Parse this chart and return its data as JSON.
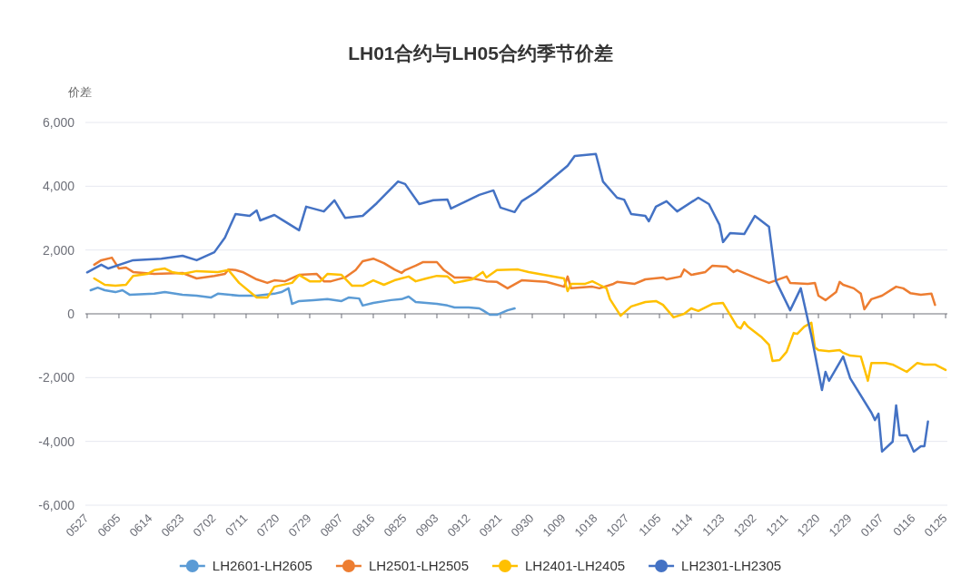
{
  "chart_data": {
    "type": "line",
    "title": "LH01合约与LH05合约季节价差",
    "ylabel": "价差",
    "categories": [
      "0527",
      null,
      null,
      null,
      null,
      null,
      null,
      null,
      null,
      "0605",
      null,
      null,
      null,
      null,
      null,
      null,
      null,
      null,
      "0614",
      null,
      null,
      null,
      null,
      null,
      null,
      null,
      null,
      "0623",
      null,
      null,
      null,
      null,
      null,
      null,
      null,
      null,
      "0702",
      null,
      null,
      null,
      null,
      null,
      null,
      null,
      null,
      "0711",
      null,
      null,
      null,
      null,
      null,
      null,
      null,
      null,
      "0720",
      null,
      null,
      null,
      null,
      null,
      null,
      null,
      null,
      "0729",
      null,
      null,
      null,
      null,
      null,
      null,
      null,
      null,
      "0807",
      null,
      null,
      null,
      null,
      null,
      null,
      null,
      null,
      "0816",
      null,
      null,
      null,
      null,
      null,
      null,
      null,
      null,
      "0825",
      null,
      null,
      null,
      null,
      null,
      null,
      null,
      null,
      "0903",
      null,
      null,
      null,
      null,
      null,
      null,
      null,
      null,
      "0912",
      null,
      null,
      null,
      null,
      null,
      null,
      null,
      null,
      "0921",
      null,
      null,
      null,
      null,
      null,
      null,
      null,
      null,
      "0930",
      null,
      null,
      null,
      null,
      null,
      null,
      null,
      null,
      "1009",
      null,
      null,
      null,
      null,
      null,
      null,
      null,
      null,
      "1018",
      null,
      null,
      null,
      null,
      null,
      null,
      null,
      null,
      "1027",
      null,
      null,
      null,
      null,
      null,
      null,
      null,
      null,
      "1105",
      null,
      null,
      null,
      null,
      null,
      null,
      null,
      null,
      "1114",
      null,
      null,
      null,
      null,
      null,
      null,
      null,
      null,
      "1123",
      null,
      null,
      null,
      null,
      null,
      null,
      null,
      null,
      "1202",
      null,
      null,
      null,
      null,
      null,
      null,
      null,
      null,
      "1211",
      null,
      null,
      null,
      null,
      null,
      null,
      null,
      null,
      "1220",
      null,
      null,
      null,
      null,
      null,
      null,
      null,
      null,
      "1229",
      null,
      null,
      null,
      null,
      null,
      null,
      null,
      null,
      "0107",
      null,
      null,
      null,
      null,
      null,
      null,
      null,
      null,
      "0116",
      null,
      null,
      null,
      null,
      null,
      null,
      null,
      null,
      "0125"
    ],
    "ylim": [
      -6000,
      6000
    ],
    "yticks": [
      {
        "value": -6000,
        "label": "-6,000"
      },
      {
        "value": -4000,
        "label": "-4,000"
      },
      {
        "value": -2000,
        "label": "-2,000"
      },
      0,
      {
        "value": 2000,
        "label": "2,000"
      },
      {
        "value": 4000,
        "label": "4,000"
      },
      {
        "value": 6000,
        "label": "6,000"
      }
    ],
    "grid": "y",
    "legend": "bottom",
    "series": [
      {
        "name": "LH2601-LH2605",
        "color": "#5b9bd5",
        "values": [
          null,
          740,
          null,
          820,
          null,
          740,
          null,
          null,
          680,
          null,
          740,
          null,
          600,
          null,
          null,
          null,
          null,
          null,
          null,
          630,
          null,
          null,
          680,
          null,
          null,
          null,
          null,
          600,
          null,
          null,
          null,
          570,
          null,
          null,
          null,
          510,
          null,
          630,
          null,
          null,
          null,
          null,
          null,
          570,
          null,
          null,
          null,
          null,
          570,
          null,
          null,
          null,
          null,
          630,
          null,
          680,
          null,
          800,
          310,
          null,
          400,
          null,
          null,
          null,
          430,
          null,
          null,
          null,
          460,
          null,
          null,
          null,
          400,
          null,
          510,
          null,
          null,
          480,
          260,
          null,
          null,
          340,
          null,
          null,
          null,
          null,
          430,
          null,
          null,
          460,
          null,
          540,
          null,
          370,
          null,
          null,
          null,
          null,
          null,
          310,
          null,
          null,
          260,
          null,
          200,
          null,
          null,
          null,
          200,
          null,
          null,
          170,
          110,
          null,
          -30,
          null,
          -30,
          null,
          null,
          110,
          null,
          170,
          null,
          null,
          null,
          null,
          null,
          null,
          null,
          null,
          null,
          null,
          null,
          null,
          null,
          null,
          null,
          null,
          null,
          null,
          null,
          null,
          null,
          null,
          null,
          null,
          null,
          null,
          null,
          null,
          null,
          null,
          null,
          null,
          null,
          null,
          null,
          null,
          null,
          null,
          null,
          null,
          null,
          null,
          null,
          null,
          null,
          null,
          null,
          null,
          null,
          null,
          null,
          null,
          null,
          null,
          null,
          null,
          null,
          null,
          null,
          null,
          null,
          null,
          null,
          null,
          null,
          null,
          null,
          null,
          null,
          null,
          null,
          null,
          null,
          null,
          null,
          null,
          null,
          null,
          null,
          null,
          null,
          null,
          null,
          null,
          null,
          null,
          null,
          null,
          null,
          null,
          null,
          null,
          null,
          null,
          null,
          null,
          null,
          null,
          null,
          null,
          null,
          null,
          null,
          null,
          null,
          null,
          null,
          null,
          null,
          null,
          null,
          null,
          null,
          null,
          null,
          null,
          null,
          null,
          null,
          null,
          null,
          null
        ]
      },
      {
        "name": "LH2501-LH2505",
        "color": "#ed7d31",
        "values": [
          null,
          null,
          1540,
          null,
          1680,
          null,
          null,
          1760,
          1590,
          1420,
          null,
          1450,
          null,
          1310,
          null,
          null,
          null,
          null,
          null,
          1250,
          null,
          null,
          null,
          null,
          null,
          null,
          null,
          1280,
          null,
          null,
          null,
          1110,
          null,
          null,
          null,
          null,
          1190,
          null,
          null,
          1250,
          1390,
          null,
          1370,
          null,
          1310,
          null,
          null,
          null,
          1080,
          null,
          null,
          970,
          null,
          1050,
          null,
          null,
          1020,
          null,
          null,
          null,
          1220,
          null,
          null,
          null,
          null,
          1250,
          null,
          1020,
          null,
          1020,
          null,
          null,
          null,
          1140,
          null,
          null,
          1370,
          null,
          1650,
          null,
          null,
          1730,
          null,
          null,
          1590,
          null,
          null,
          1390,
          null,
          1280,
          1370,
          null,
          null,
          1510,
          null,
          1620,
          null,
          null,
          null,
          1620,
          null,
          1370,
          null,
          null,
          1140,
          null,
          null,
          null,
          1140,
          null,
          null,
          null,
          null,
          1020,
          null,
          null,
          1000,
          null,
          null,
          800,
          null,
          null,
          null,
          1050,
          null,
          null,
          null,
          null,
          null,
          null,
          1000,
          null,
          null,
          null,
          null,
          850,
          1170,
          800,
          null,
          null,
          null,
          null,
          null,
          850,
          null,
          800,
          null,
          null,
          null,
          940,
          1000,
          null,
          null,
          null,
          null,
          940,
          null,
          null,
          1080,
          null,
          null,
          null,
          null,
          1140,
          1080,
          null,
          null,
          null,
          1170,
          1390,
          null,
          1220,
          null,
          null,
          null,
          1310,
          null,
          1510,
          null,
          null,
          null,
          1480,
          null,
          1310,
          1370,
          null,
          null,
          null,
          null,
          1140,
          null,
          null,
          null,
          970,
          null,
          null,
          null,
          null,
          1170,
          970,
          null,
          null,
          null,
          null,
          940,
          null,
          970,
          570,
          null,
          430,
          null,
          null,
          680,
          1000,
          910,
          null,
          null,
          800,
          null,
          630,
          140,
          null,
          460,
          null,
          null,
          570,
          null,
          null,
          null,
          850,
          null,
          800,
          null,
          650,
          null,
          null,
          600,
          null,
          null,
          630,
          280,
          null,
          null,
          null
        ]
      },
      {
        "name": "LH2401-LH2405",
        "color": "#ffc000",
        "values": [
          null,
          null,
          1110,
          null,
          null,
          910,
          null,
          null,
          880,
          null,
          null,
          910,
          null,
          1190,
          null,
          null,
          null,
          1250,
          null,
          1370,
          null,
          null,
          1420,
          null,
          1310,
          null,
          null,
          1250,
          null,
          null,
          null,
          1340,
          null,
          null,
          null,
          null,
          null,
          1310,
          null,
          null,
          1370,
          null,
          null,
          970,
          null,
          null,
          null,
          null,
          510,
          null,
          null,
          510,
          null,
          850,
          null,
          null,
          null,
          null,
          970,
          null,
          1220,
          null,
          null,
          1020,
          null,
          null,
          1020,
          null,
          1250,
          null,
          null,
          null,
          1220,
          null,
          null,
          880,
          null,
          null,
          880,
          null,
          null,
          1050,
          null,
          null,
          910,
          null,
          null,
          1050,
          null,
          null,
          null,
          1170,
          null,
          1020,
          null,
          null,
          1110,
          null,
          null,
          1190,
          null,
          null,
          1170,
          null,
          970,
          null,
          null,
          null,
          null,
          1080,
          null,
          null,
          1310,
          1140,
          null,
          null,
          1370,
          null,
          null,
          null,
          null,
          null,
          1390,
          null,
          null,
          1310,
          null,
          null,
          null,
          null,
          null,
          null,
          null,
          null,
          null,
          1110,
          710,
          940,
          null,
          null,
          null,
          940,
          null,
          1020,
          null,
          910,
          null,
          800,
          460,
          null,
          null,
          -60,
          null,
          null,
          230,
          null,
          null,
          null,
          370,
          null,
          null,
          400,
          null,
          280,
          null,
          null,
          -110,
          null,
          null,
          0,
          null,
          170,
          null,
          90,
          null,
          null,
          null,
          310,
          null,
          null,
          340,
          null,
          null,
          null,
          -400,
          -460,
          -260,
          -400,
          null,
          null,
          null,
          -740,
          null,
          -970,
          -1480,
          null,
          -1450,
          null,
          -1190,
          null,
          -600,
          -630,
          null,
          -400,
          null,
          -280,
          -1050,
          -1140,
          null,
          null,
          -1170,
          null,
          null,
          -1140,
          -1220,
          null,
          -1310,
          null,
          null,
          -1340,
          null,
          -2100,
          -1540,
          null,
          null,
          null,
          -1540,
          null,
          -1590,
          null,
          null,
          null,
          -1820,
          null,
          null,
          -1540,
          null,
          -1590,
          null,
          null,
          -1590,
          null,
          null,
          -1760
        ]
      },
      {
        "name": "LH2301-LH2305",
        "color": "#4472c4",
        "values": [
          1300,
          null,
          null,
          null,
          1540,
          null,
          1420,
          null,
          null,
          null,
          null,
          null,
          null,
          1680,
          null,
          null,
          null,
          null,
          null,
          null,
          null,
          1730,
          null,
          null,
          null,
          null,
          null,
          1820,
          null,
          null,
          null,
          1680,
          null,
          null,
          null,
          null,
          1930,
          null,
          null,
          2390,
          null,
          null,
          3130,
          null,
          null,
          null,
          3070,
          null,
          3240,
          2930,
          null,
          null,
          null,
          3100,
          null,
          2960,
          null,
          null,
          null,
          null,
          2620,
          null,
          3360,
          null,
          null,
          null,
          null,
          3210,
          null,
          null,
          3560,
          null,
          null,
          3010,
          null,
          null,
          null,
          null,
          3070,
          null,
          null,
          null,
          3470,
          null,
          null,
          null,
          null,
          null,
          4150,
          null,
          4070,
          null,
          null,
          null,
          3440,
          null,
          null,
          null,
          3560,
          null,
          null,
          null,
          3580,
          3300,
          null,
          null,
          null,
          null,
          null,
          null,
          null,
          3730,
          null,
          null,
          null,
          3870,
          null,
          3330,
          null,
          null,
          null,
          3190,
          null,
          3530,
          null,
          null,
          null,
          3810,
          null,
          null,
          null,
          null,
          null,
          null,
          null,
          null,
          4640,
          null,
          4950,
          null,
          null,
          null,
          null,
          null,
          5010,
          null,
          4150,
          null,
          null,
          null,
          3640,
          null,
          3580,
          null,
          3130,
          null,
          null,
          null,
          3070,
          2900,
          null,
          3360,
          null,
          null,
          3530,
          null,
          null,
          3210,
          null,
          null,
          null,
          null,
          null,
          3640,
          null,
          null,
          3440,
          null,
          null,
          2790,
          2250,
          null,
          2530,
          null,
          null,
          null,
          2500,
          null,
          null,
          3070,
          null,
          null,
          null,
          2730,
          null,
          1020,
          null,
          null,
          null,
          110,
          null,
          null,
          800,
          null,
          null,
          -680,
          null,
          null,
          -2390,
          -1820,
          -2100,
          null,
          null,
          null,
          -1340,
          null,
          -2020,
          null,
          null,
          null,
          null,
          null,
          -3100,
          -3330,
          -3130,
          -4320,
          null,
          null,
          -4010,
          -2870,
          -3810,
          null,
          -3810,
          null,
          -4320,
          null,
          -4150,
          -4150,
          -3380,
          null,
          null,
          null,
          null,
          null
        ]
      }
    ]
  }
}
